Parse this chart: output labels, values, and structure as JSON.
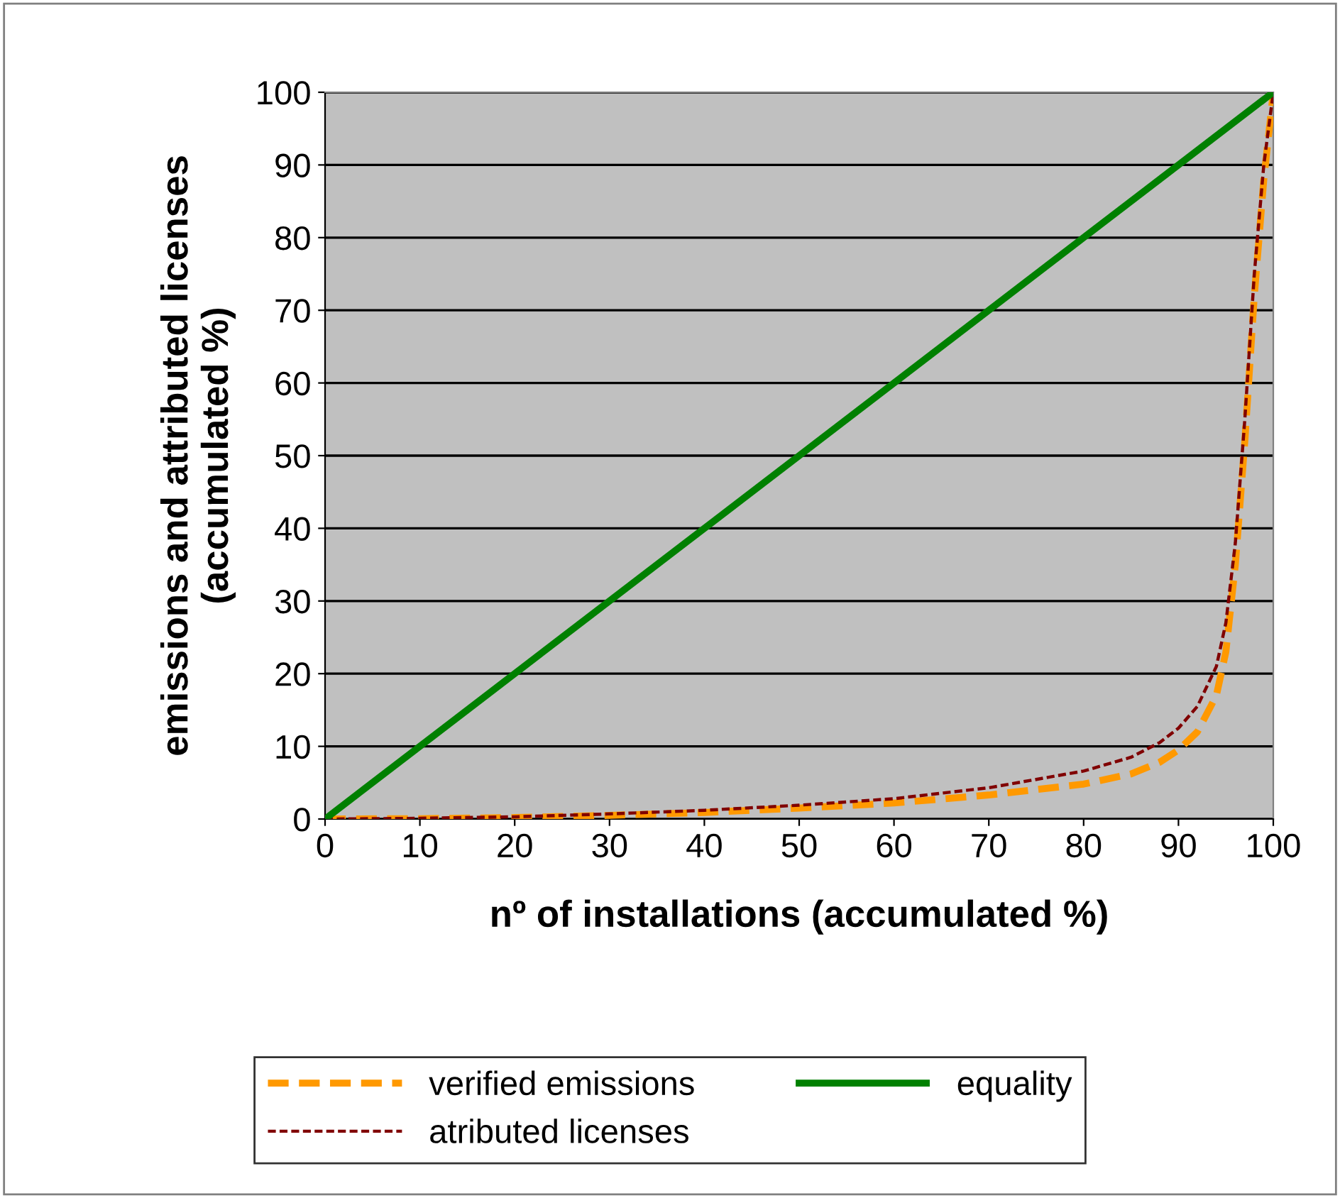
{
  "chart_data": {
    "type": "line",
    "xlabel": "nº of installations (accumulated %)",
    "ylabel": "emissions and attributed licenses\n(accumulated %)",
    "xlim": [
      0,
      100
    ],
    "ylim": [
      0,
      100
    ],
    "xticks": [
      0,
      10,
      20,
      30,
      40,
      50,
      60,
      70,
      80,
      90,
      100
    ],
    "yticks": [
      0,
      10,
      20,
      30,
      40,
      50,
      60,
      70,
      80,
      90,
      100
    ],
    "grid": "y",
    "legend": "bottom",
    "marker": "none",
    "series": [
      {
        "name": "verified emissions",
        "color": "#ff9900",
        "line_style": "dashed",
        "x": [
          0,
          10,
          20,
          30,
          40,
          50,
          60,
          70,
          80,
          85,
          88,
          90,
          92,
          94,
          95,
          96,
          97,
          98,
          99,
          100
        ],
        "values": [
          0,
          0.05,
          0.2,
          0.5,
          0.9,
          1.5,
          2.2,
          3.3,
          4.8,
          6.2,
          7.8,
          9.5,
          12,
          17,
          23,
          35,
          52,
          72,
          88,
          100
        ]
      },
      {
        "name": "atributed licenses",
        "color": "#800000",
        "line_style": "dotted",
        "x": [
          0,
          10,
          20,
          30,
          40,
          50,
          60,
          70,
          80,
          85,
          88,
          90,
          92,
          94,
          95,
          96,
          97,
          98,
          99,
          100
        ],
        "values": [
          0,
          0.1,
          0.3,
          0.7,
          1.2,
          1.9,
          2.8,
          4.3,
          6.6,
          8.5,
          10.5,
          12.5,
          15.5,
          21,
          27,
          38,
          55,
          75,
          90,
          100
        ]
      },
      {
        "name": "equality",
        "color": "#008000",
        "line_style": "solid",
        "x": [
          0,
          100
        ],
        "values": [
          0,
          100
        ]
      }
    ]
  }
}
